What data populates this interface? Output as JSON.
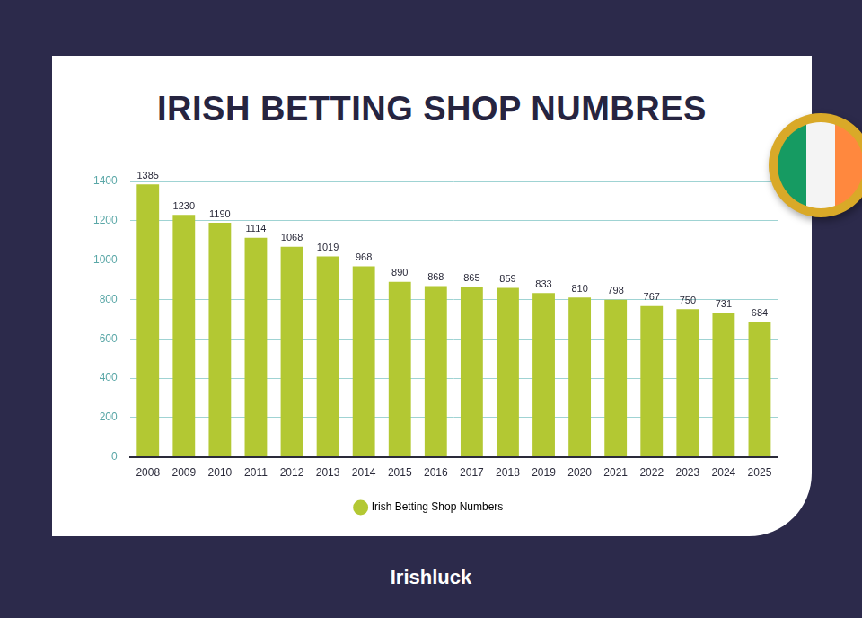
{
  "chart_data": {
    "type": "bar",
    "title": "IRISH BETTING SHOP NUMBRES",
    "categories": [
      "2008",
      "2009",
      "2010",
      "2011",
      "2012",
      "2013",
      "2014",
      "2015",
      "2016",
      "2017",
      "2018",
      "2019",
      "2020",
      "2021",
      "2022",
      "2023",
      "2024",
      "2025"
    ],
    "series": [
      {
        "name": "Irish Betting Shop Numbers",
        "color": "#b3c833",
        "values": [
          1385,
          1230,
          1190,
          1114,
          1068,
          1019,
          968,
          890,
          868,
          865,
          859,
          833,
          810,
          798,
          767,
          750,
          731,
          684
        ]
      }
    ],
    "ylim": [
      0,
      1400
    ],
    "yticks": [
      0,
      200,
      400,
      600,
      800,
      1000,
      1200,
      1400
    ],
    "grid": true,
    "legend": "bottom",
    "data_labels": true
  },
  "brand": "Irishluck"
}
